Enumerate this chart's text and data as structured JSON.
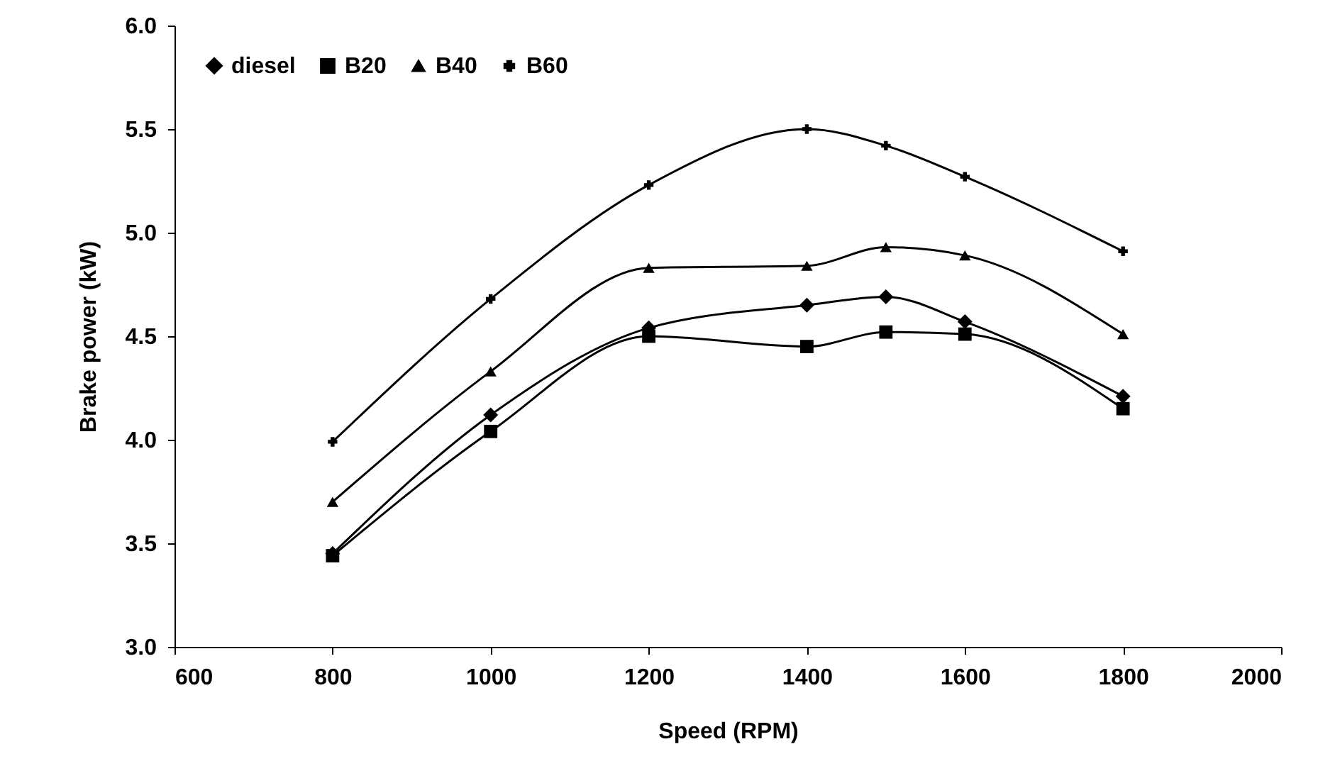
{
  "chart_data": {
    "type": "line",
    "xlabel": "Speed (RPM)",
    "ylabel": "Brake power (kW)",
    "x": [
      800,
      1000,
      1200,
      1400,
      1500,
      1600,
      1800
    ],
    "series": [
      {
        "name": "diesel",
        "color": "#000000",
        "marker": "diamond",
        "values": [
          3.45,
          4.12,
          4.54,
          4.65,
          4.69,
          4.57,
          4.21
        ]
      },
      {
        "name": "B20",
        "color": "#000000",
        "marker": "square",
        "values": [
          3.44,
          4.04,
          4.5,
          4.45,
          4.52,
          4.51,
          4.15
        ]
      },
      {
        "name": "B40",
        "color": "#000000",
        "marker": "triangle",
        "values": [
          3.7,
          4.33,
          4.83,
          4.84,
          4.93,
          4.89,
          4.51
        ]
      },
      {
        "name": "B60",
        "color": "#000000",
        "marker": "cross",
        "values": [
          3.99,
          4.68,
          5.23,
          5.5,
          5.42,
          5.27,
          4.91
        ]
      }
    ],
    "xlim": [
      600,
      2000
    ],
    "xticks": [
      600,
      800,
      1000,
      1200,
      1400,
      1600,
      1800,
      2000
    ],
    "ylim": [
      3,
      6
    ],
    "yticks": [
      {
        "value": 3,
        "label": "3.0"
      },
      3.5,
      {
        "value": 4,
        "label": "4.0"
      },
      4.5,
      {
        "value": 5,
        "label": "5.0"
      },
      5.5,
      {
        "value": 6,
        "label": "6.0"
      }
    ],
    "legend": "top left",
    "grid": false
  }
}
